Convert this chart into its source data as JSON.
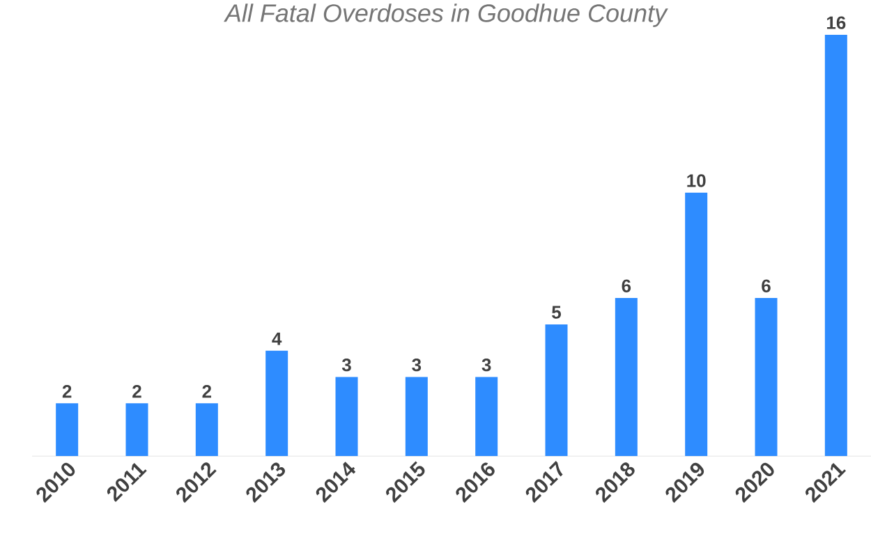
{
  "chart_data": {
    "type": "bar",
    "title": "All Fatal Overdoses in Goodhue County",
    "categories": [
      "2010",
      "2011",
      "2012",
      "2013",
      "2014",
      "2015",
      "2016",
      "2017",
      "2018",
      "2019",
      "2020",
      "2021"
    ],
    "values": [
      2,
      2,
      2,
      4,
      3,
      3,
      3,
      5,
      6,
      10,
      6,
      16
    ],
    "color": "#2e8cff",
    "data_labels": true
  }
}
